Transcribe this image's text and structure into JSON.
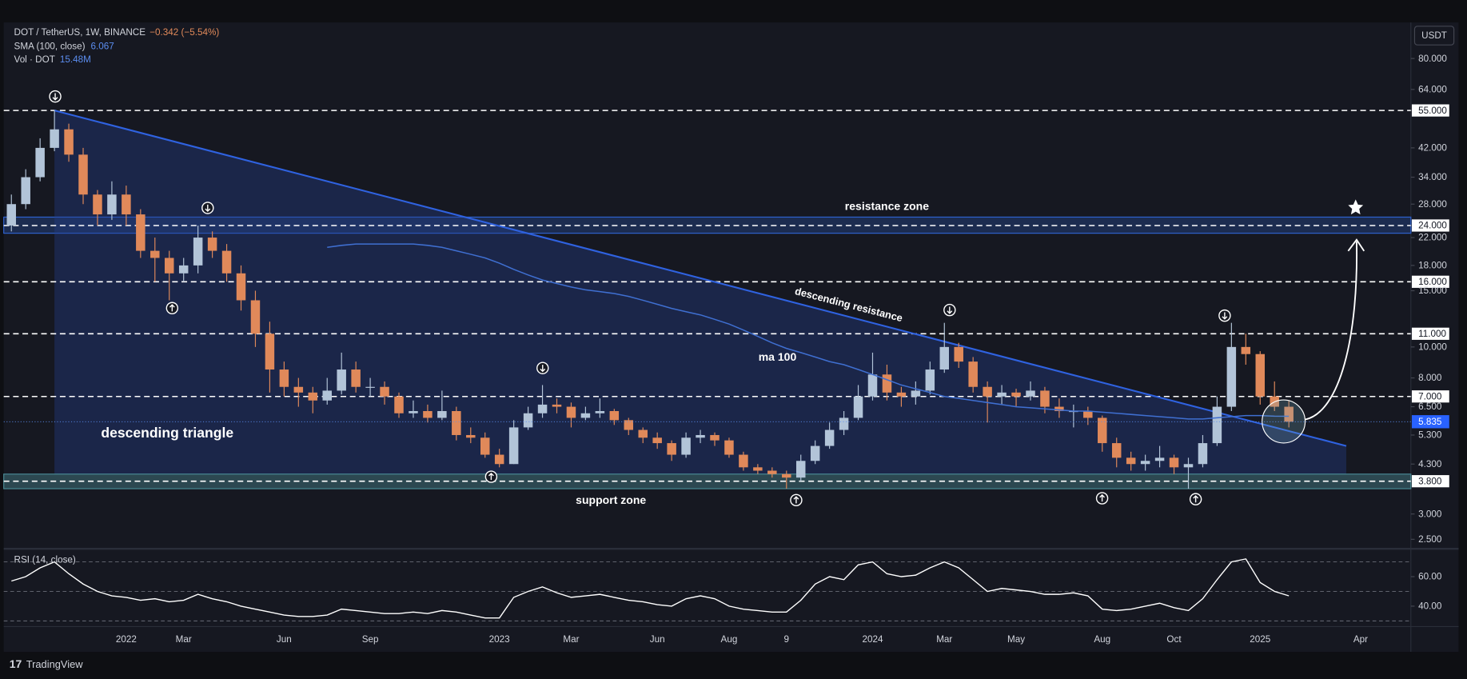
{
  "chart_data": {
    "type": "candlestick",
    "title": "DOT / TetherUS, 1W, BINANCE",
    "change": "−0.342 (−5.54%)",
    "currency": "USDT",
    "log_scale": true,
    "ylim": [
      2.35,
      103
    ],
    "yticks": [
      {
        "value": 80,
        "label": "80.000"
      },
      {
        "value": 64,
        "label": "64.000"
      },
      {
        "value": 55,
        "label": "55.000"
      },
      {
        "value": 42,
        "label": "42.000"
      },
      {
        "value": 34,
        "label": "34.000"
      },
      {
        "value": 28,
        "label": "28.000"
      },
      {
        "value": 24,
        "label": "24.000"
      },
      {
        "value": 22,
        "label": "22.000"
      },
      {
        "value": 18,
        "label": "18.000"
      },
      {
        "value": 16,
        "label": "16.000"
      },
      {
        "value": 15,
        "label": "15.000"
      },
      {
        "value": 11,
        "label": "11.000"
      },
      {
        "value": 10,
        "label": "10.000"
      },
      {
        "value": 8,
        "label": "8.000"
      },
      {
        "value": 7,
        "label": "7.000"
      },
      {
        "value": 6.5,
        "label": "6.500"
      },
      {
        "value": 5.3,
        "label": "5.300"
      },
      {
        "value": 4.3,
        "label": "4.300"
      },
      {
        "value": 3.8,
        "label": "3.800"
      },
      {
        "value": 3,
        "label": "3.000"
      },
      {
        "value": 2.5,
        "label": "2.500"
      }
    ],
    "levels": [
      55,
      24,
      16,
      11,
      7,
      3.8
    ],
    "resistance_zone": [
      22.7,
      25.5
    ],
    "support_zone": [
      3.6,
      4.0
    ],
    "trendline": {
      "from": [
        3,
        55
      ],
      "to": [
        93,
        4.9
      ]
    },
    "annotations": [
      "descending triangle",
      "resistance zone",
      "descending resistance",
      "ma 100",
      "support zone"
    ],
    "categories": [
      null,
      null,
      null,
      null,
      null,
      null,
      null,
      null,
      "2022",
      null,
      null,
      null,
      "Mar",
      null,
      null,
      null,
      null,
      null,
      null,
      "Jun",
      null,
      null,
      null,
      null,
      null,
      "Sep",
      null,
      null,
      null,
      null,
      null,
      null,
      null,
      null,
      "2023",
      null,
      null,
      null,
      null,
      "Mar",
      null,
      null,
      null,
      null,
      null,
      "Jun",
      null,
      null,
      null,
      null,
      "Aug",
      null,
      null,
      null,
      "9",
      null,
      null,
      null,
      null,
      null,
      "2024",
      null,
      null,
      null,
      null,
      "Mar",
      null,
      null,
      null,
      null,
      "May",
      null,
      null,
      null,
      null,
      null,
      "Aug",
      null,
      null,
      null,
      null,
      "Oct",
      null,
      null,
      null,
      null,
      null,
      "2025",
      null,
      null,
      null,
      null,
      null,
      null,
      "Apr",
      null,
      null,
      null
    ],
    "series": [
      {
        "name": "DOT / TetherUS",
        "up_color": "#b2c4d8",
        "down_color": "#e0895a",
        "values": [
          [
            24,
            30,
            23,
            28
          ],
          [
            28,
            36,
            27,
            34
          ],
          [
            34,
            45,
            33,
            42
          ],
          [
            42,
            55,
            41,
            48
          ],
          [
            48,
            50,
            38,
            40
          ],
          [
            40,
            42,
            28,
            30
          ],
          [
            30,
            31,
            24,
            26
          ],
          [
            26,
            33,
            25,
            30
          ],
          [
            30,
            32,
            24,
            26
          ],
          [
            26,
            27,
            19,
            20
          ],
          [
            20,
            22,
            16,
            19
          ],
          [
            19,
            20,
            14,
            17
          ],
          [
            17,
            19,
            16,
            18
          ],
          [
            18,
            24,
            17,
            22
          ],
          [
            22,
            23,
            19,
            20
          ],
          [
            20,
            21,
            16,
            17
          ],
          [
            17,
            18,
            13,
            14
          ],
          [
            14,
            15,
            10,
            11
          ],
          [
            11,
            12,
            7.2,
            8.5
          ],
          [
            8.5,
            9,
            7,
            7.5
          ],
          [
            7.5,
            8,
            6.5,
            7.2
          ],
          [
            7.2,
            7.5,
            6.2,
            6.8
          ],
          [
            6.8,
            8,
            6.6,
            7.3
          ],
          [
            7.3,
            9.6,
            7.1,
            8.5
          ],
          [
            8.5,
            9,
            7.2,
            7.5
          ],
          [
            7.5,
            8,
            7,
            7.5
          ],
          [
            7.5,
            7.8,
            6.6,
            7
          ],
          [
            7,
            7.2,
            6,
            6.2
          ],
          [
            6.2,
            6.8,
            6,
            6.3
          ],
          [
            6.3,
            6.6,
            5.8,
            6
          ],
          [
            6,
            7.3,
            5.9,
            6.3
          ],
          [
            6.3,
            6.5,
            5.1,
            5.3
          ],
          [
            5.3,
            5.6,
            5,
            5.2
          ],
          [
            5.2,
            5.4,
            4.5,
            4.6
          ],
          [
            4.6,
            4.8,
            4.2,
            4.3
          ],
          [
            4.3,
            5.9,
            4.3,
            5.6
          ],
          [
            5.6,
            6.5,
            5.5,
            6.2
          ],
          [
            6.2,
            7.6,
            6,
            6.6
          ],
          [
            6.6,
            6.9,
            6.2,
            6.5
          ],
          [
            6.5,
            6.7,
            5.6,
            6
          ],
          [
            6,
            6.5,
            5.9,
            6.2
          ],
          [
            6.2,
            6.9,
            6,
            6.3
          ],
          [
            6.3,
            6.4,
            5.7,
            5.9
          ],
          [
            5.9,
            6,
            5.3,
            5.5
          ],
          [
            5.5,
            5.6,
            5,
            5.2
          ],
          [
            5.2,
            5.4,
            4.8,
            5
          ],
          [
            5,
            5.1,
            4.4,
            4.6
          ],
          [
            4.6,
            5.4,
            4.5,
            5.2
          ],
          [
            5.2,
            5.5,
            5,
            5.3
          ],
          [
            5.3,
            5.4,
            4.9,
            5.1
          ],
          [
            5.1,
            5.2,
            4.5,
            4.6
          ],
          [
            4.6,
            4.7,
            4.1,
            4.2
          ],
          [
            4.2,
            4.3,
            4,
            4.1
          ],
          [
            4.1,
            4.2,
            3.9,
            4
          ],
          [
            4,
            4.1,
            3.6,
            3.9
          ],
          [
            3.9,
            4.6,
            3.8,
            4.4
          ],
          [
            4.4,
            5.1,
            4.3,
            4.9
          ],
          [
            4.9,
            5.8,
            4.8,
            5.5
          ],
          [
            5.5,
            6.3,
            5.3,
            6
          ],
          [
            6,
            7.6,
            5.9,
            7
          ],
          [
            7,
            9.6,
            6.8,
            8.2
          ],
          [
            8.2,
            8.8,
            6.8,
            7.2
          ],
          [
            7.2,
            7.5,
            6.5,
            7
          ],
          [
            7,
            7.8,
            6.6,
            7.3
          ],
          [
            7.3,
            9,
            7.1,
            8.5
          ],
          [
            8.5,
            11.9,
            8.3,
            10
          ],
          [
            10,
            10.3,
            8.6,
            9
          ],
          [
            9,
            9.3,
            7.2,
            7.5
          ],
          [
            7.5,
            7.8,
            5.8,
            7
          ],
          [
            7,
            7.6,
            6.6,
            7.2
          ],
          [
            7.2,
            7.4,
            6.5,
            7
          ],
          [
            7,
            7.8,
            6.8,
            7.3
          ],
          [
            7.3,
            7.5,
            6.2,
            6.5
          ],
          [
            6.5,
            6.9,
            6,
            6.3
          ],
          [
            6.3,
            6.6,
            5.6,
            6.3
          ],
          [
            6.3,
            6.5,
            5.7,
            6
          ],
          [
            6,
            6.1,
            4.7,
            5
          ],
          [
            5,
            5.2,
            4.2,
            4.5
          ],
          [
            4.5,
            4.7,
            4.1,
            4.3
          ],
          [
            4.3,
            4.6,
            4.1,
            4.4
          ],
          [
            4.4,
            4.9,
            4.2,
            4.5
          ],
          [
            4.5,
            4.6,
            4,
            4.2
          ],
          [
            4.2,
            4.5,
            3.6,
            4.3
          ],
          [
            4.3,
            5.3,
            4.2,
            5
          ],
          [
            5,
            7,
            4.9,
            6.5
          ],
          [
            6.5,
            11.9,
            6.3,
            10
          ],
          [
            10,
            11,
            8.8,
            9.5
          ],
          [
            9.5,
            9.7,
            6.6,
            7
          ],
          [
            7,
            7.8,
            6.3,
            6.5
          ],
          [
            6.5,
            6.8,
            5.6,
            5.835
          ],
          null,
          null,
          null,
          null,
          null,
          null,
          null,
          null
        ]
      }
    ],
    "sma": {
      "name": "SMA (100, close)",
      "color": "#3f6fd1",
      "values": [
        null,
        null,
        null,
        null,
        null,
        null,
        null,
        null,
        null,
        null,
        null,
        null,
        null,
        null,
        null,
        null,
        null,
        null,
        null,
        null,
        null,
        null,
        20.5,
        20.8,
        21,
        21,
        21,
        21,
        21,
        20.8,
        20.5,
        20,
        19.5,
        19,
        18.3,
        17.5,
        16.8,
        16.2,
        15.8,
        15.4,
        15.1,
        14.9,
        14.7,
        14.4,
        14,
        13.6,
        13.2,
        12.9,
        12.6,
        12.2,
        11.8,
        11.3,
        10.8,
        10.3,
        9.9,
        9.6,
        9.3,
        9,
        8.8,
        8.5,
        8.2,
        7.9,
        7.6,
        7.4,
        7.2,
        7,
        6.9,
        6.8,
        6.7,
        6.6,
        6.5,
        6.45,
        6.4,
        6.35,
        6.3,
        6.3,
        6.25,
        6.2,
        6.15,
        6.1,
        6.05,
        6,
        5.95,
        5.95,
        6,
        6.05,
        6.1,
        6.1,
        6.07,
        6.067,
        null,
        null,
        null,
        null,
        null,
        null,
        null,
        null
      ]
    },
    "volume": {
      "name": "Vol · DOT",
      "value_label": "15.48M"
    },
    "rsi": {
      "name": "RSI (14, close)",
      "color": "#ffffff",
      "ylim": [
        26.8,
        77.6
      ],
      "yticks": [
        {
          "value": 40,
          "label": "40.00"
        },
        {
          "value": 60,
          "label": "60.00"
        }
      ],
      "levels": [
        30,
        50,
        70
      ],
      "values": [
        57,
        60,
        66,
        70,
        62,
        55,
        50,
        47,
        46,
        44,
        45,
        43,
        44,
        48,
        45,
        43,
        40,
        38,
        36,
        34,
        33,
        33,
        34,
        38,
        37,
        36,
        35,
        35,
        36,
        35,
        37,
        36,
        34,
        32,
        32,
        46,
        50,
        53,
        49,
        46,
        47,
        48,
        46,
        44,
        43,
        41,
        40,
        45,
        47,
        45,
        40,
        38,
        37,
        36,
        36,
        44,
        55,
        60,
        58,
        68,
        70,
        62,
        60,
        61,
        66,
        70,
        66,
        58,
        50,
        52,
        51,
        50,
        48,
        48,
        49,
        47,
        38,
        37,
        38,
        40,
        42,
        39,
        37,
        45,
        58,
        70,
        72,
        56,
        50,
        47,
        null,
        null,
        null,
        null,
        null,
        null,
        null,
        null
      ]
    },
    "watermark": "TradingView"
  }
}
